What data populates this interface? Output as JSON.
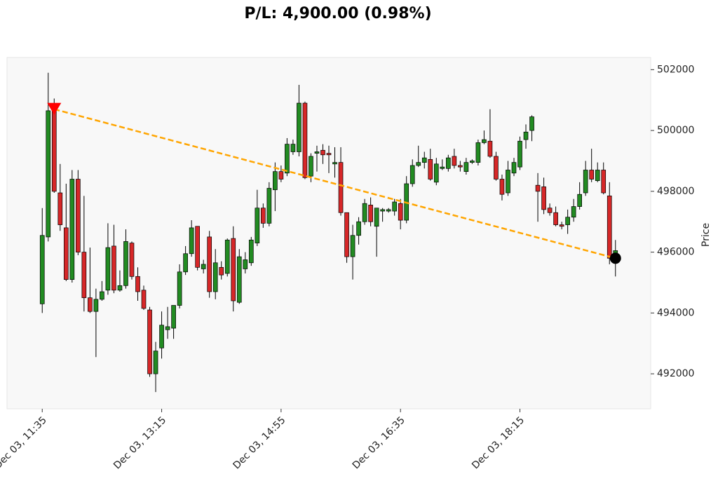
{
  "chart_data": {
    "type": "candlestick",
    "title": "P/L: 4,900.00 (0.98%)",
    "ylabel": "Price",
    "open": [
      494300,
      496500,
      500650,
      497950,
      496800,
      495100,
      498400,
      496000,
      494500,
      494050,
      494450,
      494750,
      496200,
      494750,
      494900,
      496300,
      495200,
      494750,
      494100,
      492000,
      492850,
      493450,
      493500,
      494250,
      495350,
      495950,
      496850,
      495450,
      496500,
      494700,
      495500,
      495300,
      496450,
      494350,
      495450,
      495650,
      496300,
      497450,
      496950,
      498050,
      498650,
      498600,
      499300,
      499300,
      500900,
      498500,
      499250,
      499350,
      499250,
      498900,
      498950,
      497300,
      495850,
      496550,
      497000,
      497550,
      496850,
      497350,
      497350,
      497350,
      497600,
      497050,
      498250,
      498850,
      498950,
      499050,
      498300,
      498750,
      498750,
      499150,
      498850,
      498650,
      498950,
      498950,
      499600,
      499650,
      499150,
      498400,
      497950,
      498600,
      498800,
      499700,
      500000,
      498200,
      498150,
      497450,
      497300,
      496900,
      496900,
      497150,
      497500,
      497950,
      498700,
      498350,
      498700,
      497850,
      495750
    ],
    "high": [
      497450,
      501900,
      501050,
      498900,
      498250,
      498700,
      498700,
      497850,
      496150,
      494800,
      495050,
      496950,
      496900,
      495400,
      496750,
      496350,
      495500,
      494900,
      494200,
      493050,
      494050,
      494200,
      494250,
      495600,
      496200,
      497050,
      496850,
      495750,
      496700,
      496100,
      495700,
      496450,
      496850,
      496100,
      496000,
      496500,
      498050,
      497600,
      498300,
      498950,
      498850,
      499750,
      499700,
      501500,
      500950,
      499250,
      499500,
      499550,
      499500,
      499450,
      499450,
      497300,
      496900,
      497150,
      497750,
      497800,
      497450,
      497450,
      497450,
      497750,
      497750,
      498500,
      499050,
      499500,
      499300,
      499400,
      499100,
      499050,
      499200,
      499400,
      499000,
      499100,
      499050,
      499700,
      500000,
      500700,
      499300,
      498550,
      499000,
      499100,
      499800,
      500200,
      500500,
      498600,
      498450,
      497600,
      497500,
      497000,
      497400,
      497750,
      498300,
      499000,
      499400,
      498950,
      498950,
      498300,
      496400
    ],
    "low": [
      494000,
      496350,
      497950,
      496700,
      495050,
      495000,
      495900,
      494050,
      494000,
      492550,
      494400,
      494600,
      494650,
      494700,
      494800,
      495100,
      494400,
      494100,
      491900,
      491400,
      492500,
      493150,
      493150,
      494150,
      495250,
      495850,
      495400,
      495300,
      494500,
      494450,
      495100,
      495200,
      494050,
      494300,
      495300,
      495550,
      496200,
      496800,
      496850,
      497350,
      498300,
      498500,
      499200,
      499150,
      498400,
      498300,
      498650,
      498900,
      498600,
      498450,
      497200,
      495650,
      495100,
      496250,
      496900,
      496850,
      495850,
      497000,
      497300,
      497200,
      496750,
      496950,
      498150,
      498800,
      498750,
      498350,
      498200,
      498700,
      498650,
      498750,
      498650,
      498550,
      498900,
      498850,
      499550,
      499100,
      498350,
      497700,
      497850,
      498500,
      498700,
      499400,
      499650,
      497000,
      497250,
      497200,
      496850,
      496750,
      496600,
      497000,
      497400,
      497850,
      498300,
      498300,
      497900,
      495600,
      495200
    ],
    "close": [
      496550,
      500650,
      498000,
      496900,
      495100,
      498400,
      496000,
      494500,
      494050,
      494450,
      494700,
      496150,
      494750,
      494900,
      496350,
      495200,
      494700,
      494150,
      492000,
      492750,
      493600,
      493550,
      494250,
      495350,
      495950,
      496800,
      495500,
      495600,
      494700,
      495650,
      495250,
      496400,
      494400,
      495850,
      495750,
      496400,
      497450,
      496950,
      498100,
      498650,
      498400,
      499550,
      499550,
      500900,
      498450,
      499150,
      499300,
      499200,
      499200,
      498950,
      497300,
      495850,
      496550,
      497000,
      497600,
      497000,
      497450,
      497400,
      497400,
      497650,
      497050,
      498250,
      498850,
      498950,
      499100,
      498400,
      498900,
      498800,
      499100,
      498850,
      498800,
      498950,
      499000,
      499600,
      499700,
      499150,
      498400,
      497900,
      498700,
      498950,
      499650,
      499950,
      500450,
      498000,
      497400,
      497300,
      496900,
      496850,
      497150,
      497500,
      497900,
      498700,
      498400,
      498700,
      497950,
      495800,
      496050
    ],
    "up_color": "#228b22",
    "down_color": "#d62728",
    "xlim": [
      -5.9,
      101.9
    ],
    "xticks": [
      {
        "value": 0,
        "label": "Dec 03, 11:35"
      },
      {
        "value": 20,
        "label": "Dec 03, 13:15"
      },
      {
        "value": 40,
        "label": "Dec 03, 14:55"
      },
      {
        "value": 60,
        "label": "Dec 03, 16:35"
      },
      {
        "value": 80,
        "label": "Dec 03, 18:15"
      }
    ],
    "ylim": [
      490850,
      502400
    ],
    "yticks": [
      492000,
      494000,
      496000,
      498000,
      500000,
      502000
    ],
    "markers": [
      {
        "x": 2,
        "y": 500700,
        "shape": "triangle-down",
        "color": "#ff0000"
      },
      {
        "x": 96,
        "y": 495800,
        "shape": "circle",
        "color": "#000000"
      }
    ],
    "trend_line_color": "#ffa500"
  }
}
